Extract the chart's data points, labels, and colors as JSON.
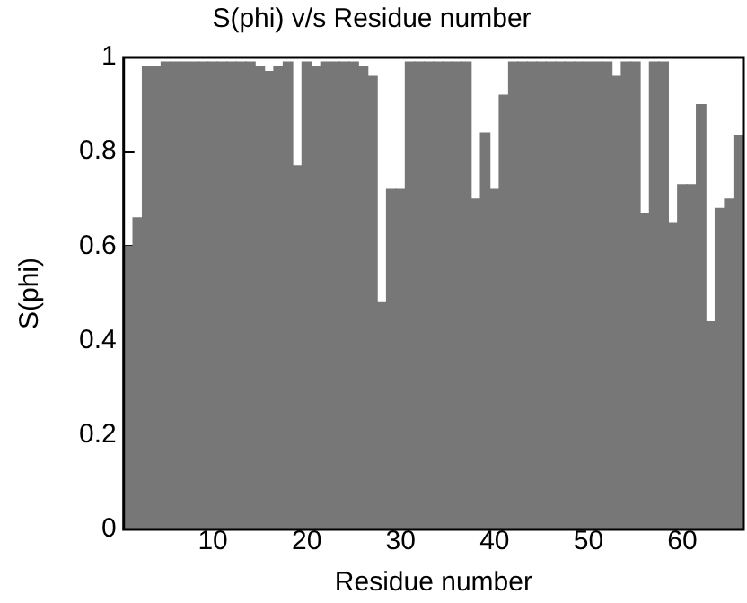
{
  "chart_data": {
    "type": "bar",
    "title": "S(phi) v/s Residue number",
    "xlabel": "Residue number",
    "ylabel": "S(phi)",
    "x": [
      1,
      2,
      3,
      4,
      5,
      6,
      7,
      8,
      9,
      10,
      11,
      12,
      13,
      14,
      15,
      16,
      17,
      18,
      19,
      20,
      21,
      22,
      23,
      24,
      25,
      26,
      27,
      28,
      29,
      30,
      31,
      32,
      33,
      34,
      35,
      36,
      37,
      38,
      39,
      40,
      41,
      42,
      43,
      44,
      45,
      46,
      47,
      48,
      49,
      50,
      51,
      52,
      53,
      54,
      55,
      56,
      57,
      58,
      59,
      60,
      61,
      62,
      63,
      64,
      65,
      66
    ],
    "values": [
      0.6,
      0.66,
      0.98,
      0.98,
      0.99,
      0.99,
      0.99,
      0.99,
      0.99,
      0.99,
      0.99,
      0.99,
      0.99,
      0.99,
      0.98,
      0.97,
      0.98,
      0.99,
      0.77,
      0.99,
      0.98,
      0.99,
      0.99,
      0.99,
      0.99,
      0.98,
      0.96,
      0.48,
      0.72,
      0.72,
      0.99,
      0.99,
      0.99,
      0.99,
      0.99,
      0.99,
      0.99,
      0.7,
      0.84,
      0.72,
      0.92,
      0.99,
      0.99,
      0.99,
      0.99,
      0.99,
      0.99,
      0.99,
      0.99,
      0.99,
      0.99,
      0.99,
      0.96,
      0.99,
      0.99,
      0.67,
      0.99,
      0.99,
      0.65,
      0.73,
      0.73,
      0.9,
      0.44,
      0.68,
      0.7,
      0.835
    ],
    "color": "#777777",
    "xlim": [
      0.5,
      66.5
    ],
    "xticks": [
      10,
      20,
      30,
      40,
      50,
      60
    ],
    "ylim": [
      0,
      1
    ],
    "yticks": [
      0,
      {
        "value": 0.2,
        "label": "0.2"
      },
      {
        "value": 0.4,
        "label": "0.4"
      },
      {
        "value": 0.6,
        "label": "0.6"
      },
      {
        "value": 0.8,
        "label": "0.8"
      },
      1
    ],
    "grid": false,
    "legend": false
  }
}
